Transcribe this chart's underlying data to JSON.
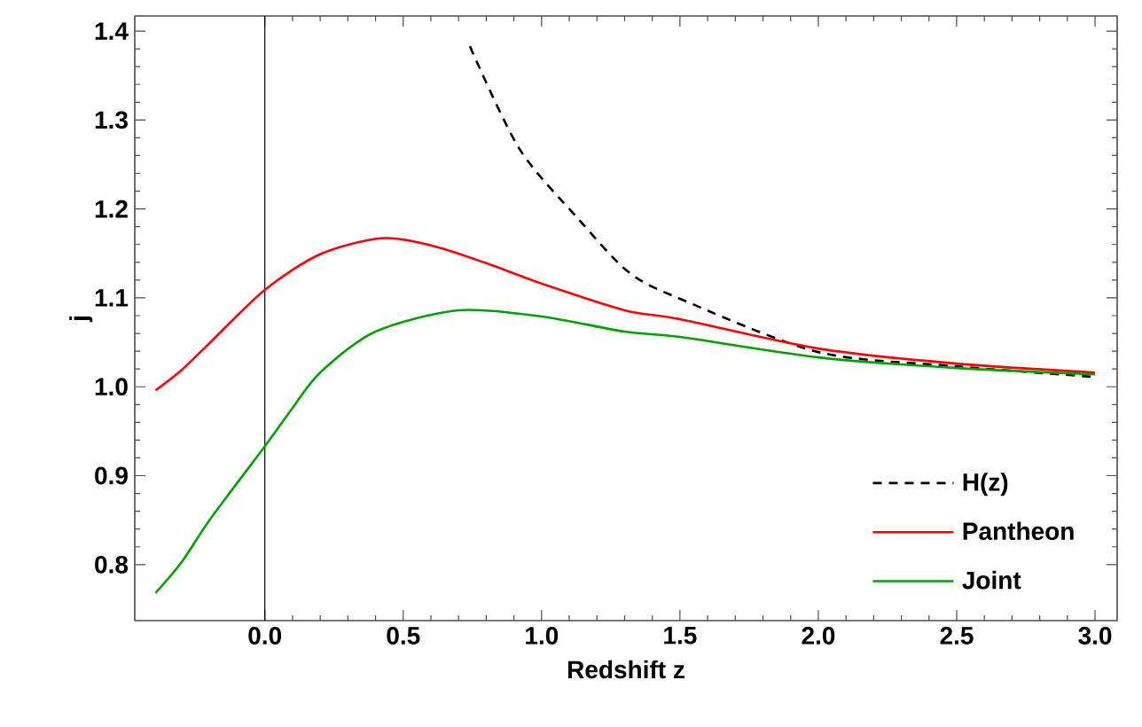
{
  "chart_data": {
    "type": "line",
    "xlabel": "Redshift z",
    "ylabel": "j",
    "xlim": [
      -0.47,
      3.08
    ],
    "ylim": [
      0.737,
      1.417
    ],
    "xticks": [
      {
        "value": 0,
        "label": "0.0"
      },
      0.5,
      {
        "value": 1,
        "label": "1.0"
      },
      1.5,
      {
        "value": 2,
        "label": "2.0"
      },
      2.5,
      {
        "value": 3,
        "label": "3.0"
      }
    ],
    "yticks": [
      {
        "value": 0.8,
        "label": "0.8"
      },
      {
        "value": 0.9,
        "label": "0.9"
      },
      {
        "value": 1,
        "label": "1.0"
      },
      {
        "value": 1.1,
        "label": "1.1"
      },
      {
        "value": 1.2,
        "label": "1.2"
      },
      {
        "value": 1.3,
        "label": "1.3"
      },
      {
        "value": 1.4,
        "label": "1.4"
      }
    ],
    "grid": false,
    "legend": "bottom right",
    "marker": "none",
    "ref_lines": [
      {
        "axis": "x",
        "value": 0,
        "color": "#000000"
      }
    ],
    "series": [
      {
        "name": "H(z)",
        "color": "#000000",
        "line_style": "dashed",
        "x": [
          0.741,
          0.919,
          1.132,
          1.314,
          1.5,
          2.0,
          2.5,
          3.0
        ],
        "values": [
          1.383,
          1.268,
          1.189,
          1.129,
          1.099,
          1.039,
          1.023,
          1.011
        ]
      },
      {
        "name": "Pantheon",
        "color": "#ff0000",
        "line_style": "solid",
        "x": [
          -0.395,
          -0.3,
          -0.2,
          0,
          0.2,
          0.42,
          0.6,
          0.8,
          1.0,
          1.3,
          1.5,
          2.0,
          2.5,
          3.0
        ],
        "values": [
          0.996,
          1.019,
          1.049,
          1.109,
          1.149,
          1.167,
          1.159,
          1.139,
          1.116,
          1.086,
          1.076,
          1.043,
          1.026,
          1.016
        ]
      },
      {
        "name": "Joint",
        "color": "#00a000",
        "line_style": "solid",
        "x": [
          -0.395,
          -0.3,
          -0.2,
          0,
          0.1,
          0.2,
          0.4,
          0.7,
          1.0,
          1.3,
          1.5,
          2.0,
          2.5,
          3.0
        ],
        "values": [
          0.768,
          0.803,
          0.85,
          0.933,
          0.976,
          1.016,
          1.062,
          1.086,
          1.079,
          1.062,
          1.056,
          1.033,
          1.021,
          1.014
        ]
      }
    ]
  }
}
